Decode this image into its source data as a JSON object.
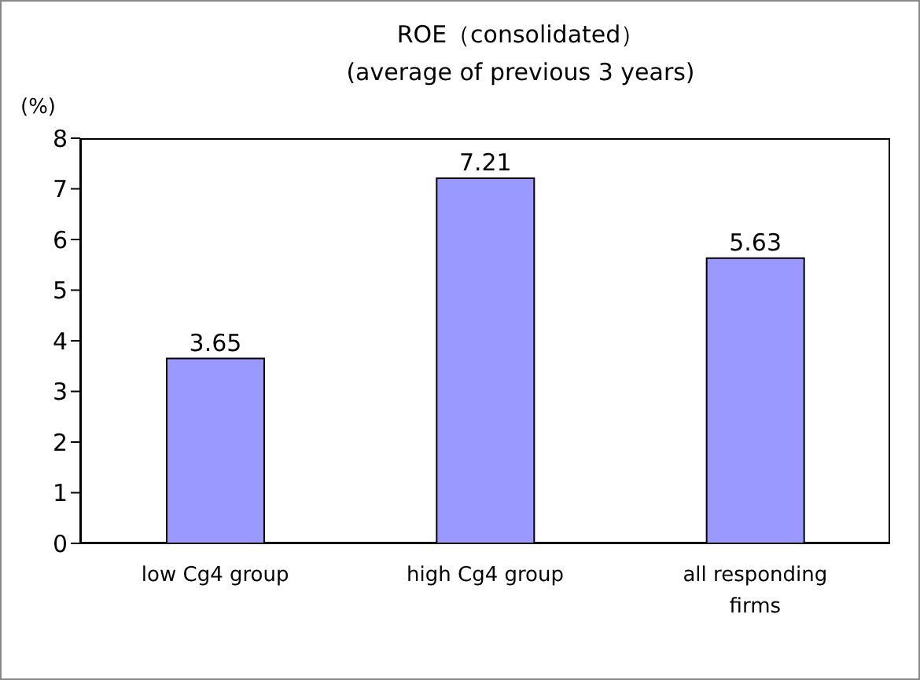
{
  "chart_data": {
    "type": "bar",
    "title": "ROE（consolidated）",
    "subtitle": "(average of previous 3 years)",
    "ylabel": "(%)",
    "categories": [
      "low Cg4 group",
      "high Cg4 group",
      "all responding firms"
    ],
    "values": [
      3.65,
      7.21,
      5.63
    ],
    "color": "#9999ff",
    "ylim": [
      0,
      8
    ],
    "yticks": [
      0,
      1,
      2,
      3,
      4,
      5,
      6,
      7,
      8
    ],
    "grid": false,
    "data_labels": true
  }
}
